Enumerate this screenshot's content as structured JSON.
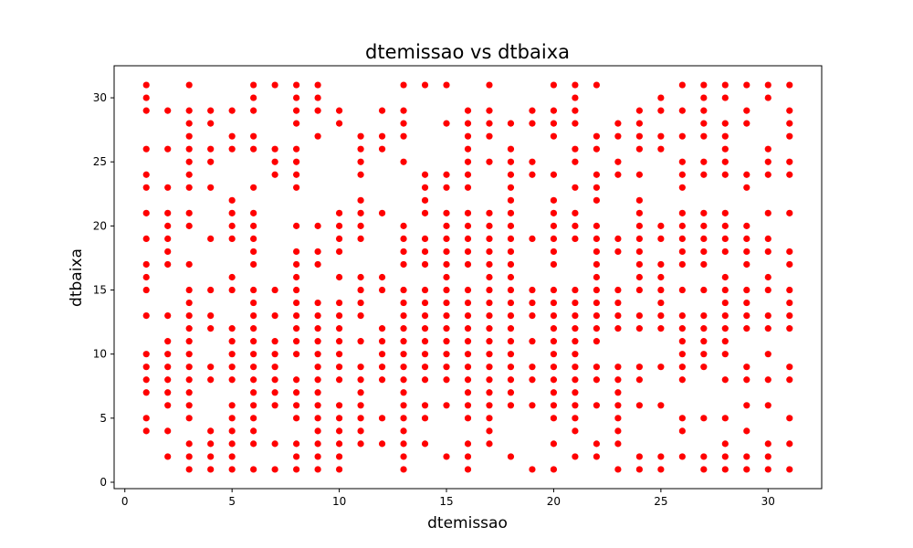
{
  "chart_data": {
    "type": "scatter",
    "title": "dtemissao vs dtbaixa",
    "xlabel": "dtemissao",
    "ylabel": "dtbaixa",
    "xlim": [
      -0.5,
      32.5
    ],
    "ylim": [
      -0.5,
      32.5
    ],
    "xticks": [
      0,
      5,
      10,
      15,
      20,
      25,
      30
    ],
    "yticks": [
      0,
      5,
      10,
      15,
      20,
      25,
      30
    ],
    "grid": false,
    "legend": "none",
    "marker_color": "#ff0000",
    "columns": [
      {
        "x": 1,
        "y": [
          4,
          5,
          7,
          8,
          9,
          10,
          13,
          15,
          16,
          17,
          19,
          21,
          23,
          24,
          26,
          29,
          30,
          31
        ]
      },
      {
        "x": 2,
        "y": [
          2,
          4,
          6,
          7,
          8,
          9,
          10,
          11,
          13,
          17,
          18,
          19,
          20,
          21,
          23,
          26,
          29
        ]
      },
      {
        "x": 3,
        "y": [
          1,
          2,
          3,
          5,
          6,
          7,
          8,
          9,
          10,
          11,
          12,
          13,
          14,
          15,
          17,
          20,
          21,
          23,
          24,
          25,
          26,
          27,
          28,
          29,
          31
        ]
      },
      {
        "x": 4,
        "y": [
          1,
          2,
          3,
          4,
          8,
          9,
          12,
          13,
          15,
          19,
          23,
          25,
          26,
          28,
          29
        ]
      },
      {
        "x": 5,
        "y": [
          1,
          2,
          3,
          4,
          5,
          6,
          8,
          9,
          10,
          11,
          12,
          15,
          16,
          19,
          20,
          21,
          22,
          26,
          27,
          29
        ]
      },
      {
        "x": 6,
        "y": [
          1,
          3,
          4,
          5,
          6,
          7,
          8,
          9,
          10,
          11,
          12,
          13,
          14,
          15,
          17,
          18,
          19,
          20,
          21,
          23,
          26,
          27,
          29,
          30,
          31
        ]
      },
      {
        "x": 7,
        "y": [
          1,
          3,
          6,
          7,
          8,
          9,
          10,
          11,
          13,
          15,
          24,
          25,
          26,
          31
        ]
      },
      {
        "x": 8,
        "y": [
          1,
          2,
          3,
          5,
          6,
          7,
          8,
          10,
          11,
          12,
          13,
          14,
          15,
          16,
          17,
          18,
          20,
          23,
          24,
          25,
          26,
          28,
          29,
          30,
          31
        ]
      },
      {
        "x": 9,
        "y": [
          1,
          2,
          3,
          4,
          5,
          6,
          7,
          8,
          9,
          10,
          11,
          12,
          13,
          14,
          17,
          18,
          20,
          27,
          29,
          30,
          31
        ]
      },
      {
        "x": 10,
        "y": [
          1,
          2,
          3,
          4,
          5,
          6,
          8,
          9,
          10,
          11,
          12,
          13,
          14,
          16,
          18,
          19,
          20,
          21,
          28,
          29
        ]
      },
      {
        "x": 11,
        "y": [
          3,
          4,
          5,
          6,
          7,
          8,
          9,
          11,
          13,
          14,
          15,
          16,
          19,
          20,
          21,
          22,
          24,
          25,
          26,
          27
        ]
      },
      {
        "x": 12,
        "y": [
          3,
          5,
          8,
          9,
          10,
          11,
          12,
          15,
          16,
          21,
          26,
          27,
          29
        ]
      },
      {
        "x": 13,
        "y": [
          1,
          2,
          3,
          4,
          5,
          6,
          7,
          8,
          9,
          10,
          11,
          12,
          13,
          14,
          15,
          17,
          18,
          19,
          20,
          25,
          27,
          28,
          29,
          31
        ]
      },
      {
        "x": 14,
        "y": [
          3,
          5,
          6,
          8,
          9,
          10,
          11,
          12,
          13,
          14,
          15,
          17,
          18,
          19,
          21,
          22,
          23,
          24,
          31
        ]
      },
      {
        "x": 15,
        "y": [
          2,
          6,
          8,
          9,
          10,
          11,
          12,
          13,
          14,
          15,
          16,
          17,
          18,
          19,
          20,
          21,
          23,
          24,
          28,
          31
        ]
      },
      {
        "x": 16,
        "y": [
          1,
          2,
          3,
          5,
          6,
          7,
          8,
          9,
          10,
          11,
          12,
          13,
          14,
          15,
          17,
          18,
          19,
          20,
          21,
          23,
          24,
          25,
          26,
          27,
          28,
          29
        ]
      },
      {
        "x": 17,
        "y": [
          3,
          4,
          5,
          6,
          7,
          8,
          9,
          10,
          11,
          12,
          13,
          14,
          15,
          16,
          17,
          18,
          19,
          20,
          21,
          25,
          27,
          28,
          29,
          31
        ]
      },
      {
        "x": 18,
        "y": [
          2,
          6,
          7,
          8,
          9,
          10,
          11,
          12,
          13,
          14,
          15,
          16,
          17,
          18,
          19,
          20,
          21,
          22,
          23,
          24,
          25,
          26,
          28
        ]
      },
      {
        "x": 19,
        "y": [
          1,
          6,
          8,
          9,
          11,
          13,
          14,
          15,
          19,
          24,
          25,
          28,
          29
        ]
      },
      {
        "x": 20,
        "y": [
          1,
          3,
          5,
          6,
          7,
          8,
          9,
          10,
          11,
          12,
          13,
          14,
          15,
          17,
          18,
          19,
          20,
          21,
          22,
          24,
          27,
          28,
          29,
          31
        ]
      },
      {
        "x": 21,
        "y": [
          2,
          4,
          5,
          6,
          7,
          8,
          9,
          10,
          11,
          12,
          13,
          14,
          15,
          19,
          20,
          21,
          23,
          25,
          26,
          28,
          29,
          30,
          31
        ]
      },
      {
        "x": 22,
        "y": [
          2,
          3,
          6,
          8,
          9,
          11,
          12,
          13,
          14,
          15,
          16,
          17,
          18,
          19,
          20,
          22,
          23,
          24,
          26,
          27,
          31
        ]
      },
      {
        "x": 23,
        "y": [
          1,
          3,
          4,
          5,
          6,
          7,
          8,
          9,
          12,
          13,
          14,
          15,
          18,
          19,
          24,
          25,
          27,
          28
        ]
      },
      {
        "x": 24,
        "y": [
          1,
          2,
          6,
          8,
          9,
          12,
          13,
          15,
          16,
          17,
          18,
          19,
          20,
          21,
          22,
          24,
          26,
          27,
          28,
          29
        ]
      },
      {
        "x": 25,
        "y": [
          1,
          2,
          6,
          9,
          12,
          13,
          14,
          15,
          16,
          17,
          19,
          20,
          26,
          27,
          29,
          30
        ]
      },
      {
        "x": 26,
        "y": [
          2,
          4,
          5,
          8,
          9,
          10,
          11,
          12,
          13,
          15,
          17,
          18,
          19,
          20,
          21,
          23,
          24,
          25,
          27,
          29,
          31
        ]
      },
      {
        "x": 27,
        "y": [
          1,
          2,
          5,
          9,
          10,
          11,
          12,
          13,
          15,
          17,
          18,
          19,
          20,
          21,
          24,
          25,
          27,
          28,
          29,
          30,
          31
        ]
      },
      {
        "x": 28,
        "y": [
          1,
          2,
          3,
          5,
          8,
          10,
          11,
          12,
          13,
          14,
          15,
          16,
          18,
          19,
          20,
          21,
          24,
          25,
          26,
          27,
          28,
          30,
          31
        ]
      },
      {
        "x": 29,
        "y": [
          1,
          2,
          4,
          6,
          8,
          9,
          12,
          13,
          14,
          15,
          17,
          18,
          19,
          20,
          23,
          24,
          28,
          29,
          31
        ]
      },
      {
        "x": 30,
        "y": [
          1,
          2,
          3,
          6,
          8,
          10,
          12,
          13,
          15,
          16,
          18,
          19,
          21,
          24,
          25,
          26,
          30,
          31
        ]
      },
      {
        "x": 31,
        "y": [
          1,
          3,
          5,
          8,
          9,
          12,
          13,
          14,
          15,
          17,
          18,
          21,
          24,
          25,
          27,
          28,
          29,
          31
        ]
      }
    ]
  }
}
